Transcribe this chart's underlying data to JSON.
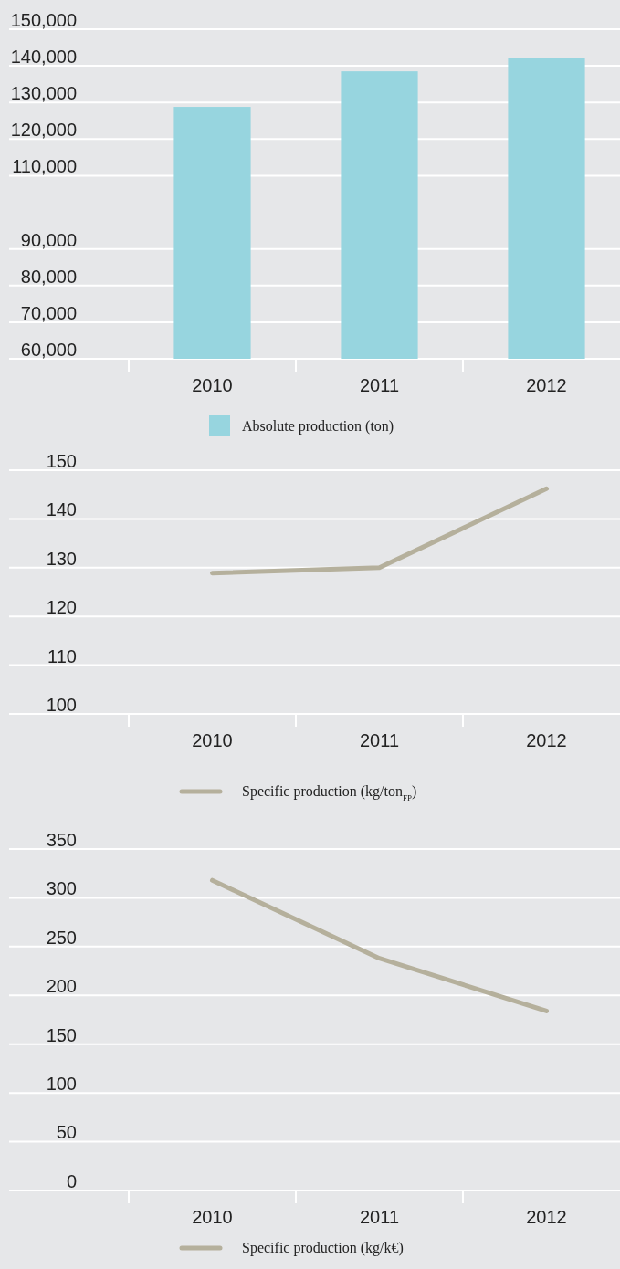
{
  "chart_data": [
    {
      "type": "bar",
      "categories": [
        "2010",
        "2011",
        "2012"
      ],
      "series": [
        {
          "name": "Absolute production (ton)",
          "color": "#97d5df",
          "values": [
            128800,
            138500,
            142200
          ]
        }
      ],
      "ylim": [
        60000,
        150000
      ],
      "yticks": [
        {
          "value": 60000,
          "label": "60,000"
        },
        {
          "value": 70000,
          "label": "70,000"
        },
        {
          "value": 80000,
          "label": "80,000"
        },
        {
          "value": 90000,
          "label": "90,000"
        },
        {
          "value": 110000,
          "label": "110,000"
        },
        {
          "value": 120000,
          "label": "120,000"
        },
        {
          "value": 130000,
          "label": "130,000"
        },
        {
          "value": 140000,
          "label": "140,000"
        },
        {
          "value": 150000,
          "label": "150,000"
        }
      ],
      "grid": "y",
      "legend": "bottom"
    },
    {
      "type": "line",
      "categories": [
        "2010",
        "2011",
        "2012"
      ],
      "series": [
        {
          "name": "Specific production (kg/ton$_{FP}$)",
          "color": "#b5b09c",
          "values": [
            128.9,
            130,
            146.2
          ]
        }
      ],
      "ylim": [
        100,
        150
      ],
      "yticks": [
        100,
        110,
        120,
        130,
        140,
        150
      ],
      "grid": "y",
      "legend": "bottom",
      "marker": "none",
      "line_style": "solid"
    },
    {
      "type": "line",
      "categories": [
        "2010",
        "2011",
        "2012"
      ],
      "series": [
        {
          "name": "Specific production (kg/k€)",
          "color": "#b5b09c",
          "values": [
            318,
            238,
            184
          ]
        }
      ],
      "ylim": [
        0,
        350
      ],
      "yticks": [
        0,
        50,
        100,
        150,
        200,
        250,
        300,
        350
      ],
      "grid": "y",
      "legend": "bottom",
      "marker": "none",
      "line_style": "solid"
    }
  ]
}
